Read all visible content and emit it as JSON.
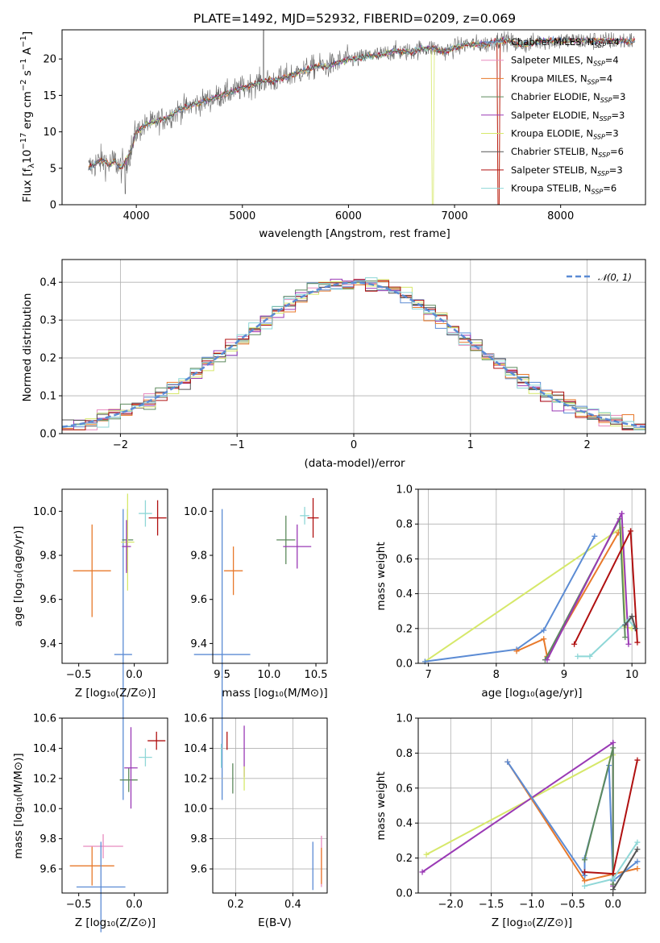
{
  "chart_data": [
    {
      "type": "line",
      "title": "PLATE=1492, MJD=52932, FIBERID=0209, z=0.069",
      "xlabel": "wavelength [Angstrom, rest frame]",
      "ylabel": "Flux [fλ10⁻¹⁷ erg cm⁻² s⁻¹ A⁻¹]",
      "xlim": [
        3300,
        8800
      ],
      "ylim": [
        0,
        24
      ],
      "xticks": [
        4000,
        5000,
        6000,
        7000,
        8000
      ],
      "yticks": [
        0,
        5,
        10,
        15,
        20
      ],
      "legend_position": "top-right",
      "spectrum": {
        "wavelength": [
          3550,
          3600,
          3650,
          3700,
          3750,
          3800,
          3850,
          3900,
          3950,
          4000,
          4100,
          4200,
          4300,
          4400,
          4500,
          4600,
          4700,
          4800,
          4900,
          5000,
          5100,
          5200,
          5300,
          5400,
          5500,
          5600,
          5700,
          5800,
          5900,
          6000,
          6100,
          6200,
          6300,
          6400,
          6500,
          6600,
          6700,
          6800,
          6900,
          7000,
          7100,
          7200,
          7300,
          7400,
          7500,
          7600,
          7700,
          7800,
          7900,
          8000,
          8100,
          8200,
          8300,
          8400,
          8500,
          8600,
          8700
        ],
        "flux": [
          5,
          5.5,
          6,
          6,
          5.5,
          6,
          5,
          6,
          7.5,
          10,
          11,
          11.5,
          12,
          13,
          13.5,
          14,
          14.5,
          15,
          15.5,
          16,
          16.5,
          17,
          17,
          17.5,
          18,
          18.5,
          19,
          19,
          19.5,
          20,
          20,
          20.5,
          20.5,
          21,
          21,
          21,
          21.5,
          21.5,
          21,
          21.5,
          22,
          22,
          22,
          22.5,
          22.5,
          22,
          22,
          22.5,
          22.5,
          22.5,
          22.5,
          22.5,
          22.5,
          22.5,
          22.5,
          22.5,
          22.5
        ]
      },
      "series": [
        {
          "name": "Chabrier MILES, N_SSP=4",
          "color": "#5b8bd4"
        },
        {
          "name": "Salpeter MILES, N_SSP=4",
          "color": "#e88bbf"
        },
        {
          "name": "Kroupa MILES, N_SSP=4",
          "color": "#e8792b"
        },
        {
          "name": "Chabrier ELODIE, N_SSP=3",
          "color": "#5d8a5d"
        },
        {
          "name": "Salpeter ELODIE, N_SSP=3",
          "color": "#9a3ab5"
        },
        {
          "name": "Kroupa ELODIE, N_SSP=3",
          "color": "#d6e86a"
        },
        {
          "name": "Chabrier STELIB, N_SSP=6",
          "color": "#555555"
        },
        {
          "name": "Salpeter STELIB, N_SSP=3",
          "color": "#b01010"
        },
        {
          "name": "Kroupa STELIB, N_SSP=6",
          "color": "#8fd7d7"
        }
      ]
    },
    {
      "type": "line",
      "xlabel": "(data-model)/error",
      "ylabel": "Normed distribution",
      "xlim": [
        -2.5,
        2.5
      ],
      "ylim": [
        0,
        0.46
      ],
      "xticks": [
        -2,
        -1,
        0,
        1,
        2
      ],
      "yticks": [
        0.0,
        0.1,
        0.2,
        0.3,
        0.4
      ],
      "grid": true,
      "legend": "𝒩(0, 1)",
      "legend_position": "top-right",
      "histogram_bins": [
        -2.5,
        -2.4,
        -2.3,
        -2.2,
        -2.1,
        -2.0,
        -1.9,
        -1.8,
        -1.7,
        -1.6,
        -1.5,
        -1.4,
        -1.3,
        -1.2,
        -1.1,
        -1.0,
        -0.9,
        -0.8,
        -0.7,
        -0.6,
        -0.5,
        -0.4,
        -0.3,
        -0.2,
        -0.1,
        0.0,
        0.1,
        0.2,
        0.3,
        0.4,
        0.5,
        0.6,
        0.7,
        0.8,
        0.9,
        1.0,
        1.1,
        1.2,
        1.3,
        1.4,
        1.5,
        1.6,
        1.7,
        1.8,
        1.9,
        2.0,
        2.1,
        2.2,
        2.3,
        2.4
      ]
    },
    {
      "type": "scatter",
      "xlabel": "Z [log₁₀(Z/Z⊙)]",
      "ylabel": "age  [log₁₀(age/yr)]",
      "xlim": [
        -0.65,
        0.3
      ],
      "ylim": [
        9.31,
        10.1
      ],
      "xticks": [
        "-0.5",
        "0.0"
      ],
      "yticks": [
        "9.4",
        "9.6",
        "9.8",
        "10.0"
      ],
      "points": [
        {
          "x": -0.38,
          "y": 9.73,
          "xerr": 0.17,
          "yerr": 0.21,
          "color": "#e8792b"
        },
        {
          "x": -0.1,
          "y": 9.35,
          "xerr": 0.08,
          "yerr": 0.66,
          "color": "#5b8bd4"
        },
        {
          "x": -0.06,
          "y": 9.87,
          "xerr": 0.05,
          "yerr": 0.14,
          "color": "#5d8a5d"
        },
        {
          "x": -0.06,
          "y": 9.86,
          "xerr": 0.06,
          "yerr": 0.22,
          "color": "#d6e86a"
        },
        {
          "x": -0.07,
          "y": 9.84,
          "xerr": 0.04,
          "yerr": 0.12,
          "color": "#9a3ab5"
        },
        {
          "x": 0.1,
          "y": 9.99,
          "xerr": 0.06,
          "yerr": 0.06,
          "color": "#8fd7d7"
        },
        {
          "x": 0.21,
          "y": 9.97,
          "xerr": 0.08,
          "yerr": 0.08,
          "color": "#b01010"
        }
      ]
    },
    {
      "type": "scatter",
      "xlabel": "mass [log₁₀(M/M⊙)]",
      "ylabel": "",
      "xlim": [
        9.4,
        10.62
      ],
      "ylim": [
        9.31,
        10.1
      ],
      "xticks": [
        "9.5",
        "10.0",
        "10.5"
      ],
      "yticks": [
        "9.4",
        "9.6",
        "9.8",
        "10.0"
      ],
      "points": [
        {
          "x": 9.62,
          "y": 9.73,
          "xerr": 0.1,
          "yerr": 0.11,
          "color": "#e8792b"
        },
        {
          "x": 9.5,
          "y": 9.35,
          "xerr": 0.3,
          "yerr": 0.66,
          "color": "#5b8bd4"
        },
        {
          "x": 10.18,
          "y": 9.87,
          "xerr": 0.1,
          "yerr": 0.11,
          "color": "#5d8a5d"
        },
        {
          "x": 10.3,
          "y": 9.84,
          "xerr": 0.15,
          "yerr": 0.1,
          "color": "#9a3ab5"
        },
        {
          "x": 10.38,
          "y": 9.98,
          "xerr": 0.05,
          "yerr": 0.04,
          "color": "#8fd7d7"
        },
        {
          "x": 10.47,
          "y": 9.97,
          "xerr": 0.06,
          "yerr": 0.09,
          "color": "#b01010"
        }
      ]
    },
    {
      "type": "line",
      "xlabel": "age  [log₁₀(age/yr)]",
      "ylabel": "mass weight",
      "xlim": [
        6.85,
        10.2
      ],
      "ylim": [
        0,
        1
      ],
      "xticks": [
        7,
        8,
        9,
        10
      ],
      "yticks": [
        0.0,
        0.2,
        0.4,
        0.6,
        0.8,
        1.0
      ],
      "grid": true
    },
    {
      "type": "scatter",
      "xlabel": "Z [log₁₀(Z/Z⊙)]",
      "ylabel": "mass [log₁₀(M/M⊙)]",
      "xlim": [
        -0.65,
        0.3
      ],
      "ylim": [
        9.44,
        10.6
      ],
      "xticks": [
        "-0.5",
        "0.0"
      ],
      "yticks": [
        "9.6",
        "9.8",
        "10.0",
        "10.2",
        "10.4",
        "10.6"
      ],
      "points": [
        {
          "x": -0.38,
          "y": 9.62,
          "xerr": 0.2,
          "yerr": 0.13,
          "color": "#e8792b"
        },
        {
          "x": -0.28,
          "y": 9.75,
          "xerr": 0.18,
          "yerr": 0.08,
          "color": "#e88bbf"
        },
        {
          "x": -0.3,
          "y": 9.48,
          "xerr": 0.22,
          "yerr": 0.3,
          "color": "#5b8bd4"
        },
        {
          "x": -0.05,
          "y": 10.19,
          "xerr": 0.08,
          "yerr": 0.08,
          "color": "#5d8a5d"
        },
        {
          "x": -0.03,
          "y": 10.27,
          "xerr": 0.06,
          "yerr": 0.27,
          "color": "#9a3ab5"
        },
        {
          "x": 0.1,
          "y": 10.34,
          "xerr": 0.06,
          "yerr": 0.06,
          "color": "#8fd7d7"
        },
        {
          "x": 0.2,
          "y": 10.45,
          "xerr": 0.08,
          "yerr": 0.06,
          "color": "#b01010"
        }
      ]
    },
    {
      "type": "scatter",
      "xlabel": "E(B-V)",
      "ylabel": "",
      "xlim": [
        0.12,
        0.52
      ],
      "ylim": [
        9.44,
        10.6
      ],
      "xticks": [
        "0.2",
        "0.4"
      ],
      "yticks": [
        "9.6",
        "9.8",
        "10.0",
        "10.2",
        "10.4",
        "10.6"
      ],
      "points": [
        {
          "x": 0.15,
          "y": 10.35,
          "yerr": 0.08,
          "color": "#8fd7d7"
        },
        {
          "x": 0.17,
          "y": 10.45,
          "yerr": 0.06,
          "color": "#b01010"
        },
        {
          "x": 0.19,
          "y": 10.2,
          "yerr": 0.1,
          "color": "#5d8a5d"
        },
        {
          "x": 0.23,
          "y": 10.38,
          "yerr": 0.17,
          "color": "#9a3ab5"
        },
        {
          "x": 0.23,
          "y": 10.2,
          "yerr": 0.08,
          "color": "#d6e86a"
        },
        {
          "x": 0.47,
          "y": 9.62,
          "yerr": 0.16,
          "color": "#5b8bd4"
        },
        {
          "x": 0.5,
          "y": 9.65,
          "yerr": 0.17,
          "color": "#e88bbf"
        },
        {
          "x": 0.5,
          "y": 9.62,
          "yerr": 0.12,
          "color": "#e8792b"
        }
      ]
    },
    {
      "type": "line",
      "xlabel": "Z [log₁₀(Z/Z⊙)]",
      "ylabel": "mass weight",
      "xlim": [
        -2.4,
        0.4
      ],
      "ylim": [
        0,
        1
      ],
      "xticks": [
        "-2.0",
        "-1.5",
        "-1.0",
        "-0.5",
        "0.0"
      ],
      "yticks": [
        0.0,
        0.2,
        0.4,
        0.6,
        0.8,
        1.0
      ],
      "grid": true
    }
  ],
  "text": {
    "title": "PLATE=1492, MJD=52932, FIBERID=0209, z=0.069",
    "p1_xlabel": "wavelength [Angstrom, rest frame]",
    "p2_xlabel": "(data-model)/error",
    "p2_ylabel": "Normed distribution",
    "p3_xlabel": "Z [log₁₀(Z/Z⊙)]",
    "p3_ylabel": "age  [log₁₀(age/yr)]",
    "p4_xlabel": "mass [log₁₀(M/M⊙)]",
    "p5_xlabel": "age  [log₁₀(age/yr)]",
    "p5_ylabel": "mass weight",
    "p6_xlabel": "Z [log₁₀(Z/Z⊙)]",
    "p6_ylabel": "mass [log₁₀(M/M⊙)]",
    "p7_xlabel": "E(B-V)",
    "p8_xlabel": "Z [log₁₀(Z/Z⊙)]",
    "p8_ylabel": "mass weight"
  }
}
